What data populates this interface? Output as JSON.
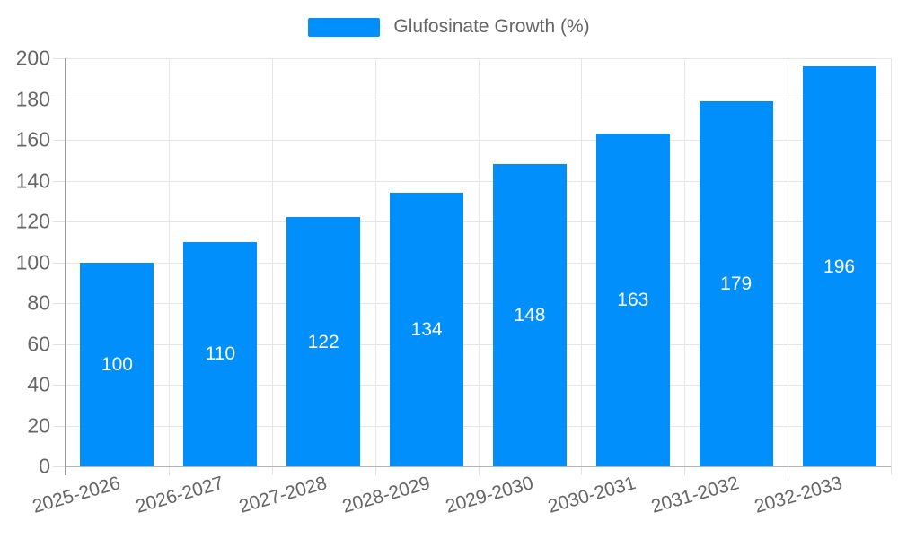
{
  "legend": {
    "label": "Glufosinate Growth (%)",
    "swatch_color": "#008FFB"
  },
  "colors": {
    "bar": "#008FFB",
    "grid": "#e6e6e6",
    "tick": "#e0e0e0",
    "axis_y_line": "#999999",
    "axis_x_line": "#b3b3b3",
    "label": "#666666",
    "value_label": "#ffffff",
    "background": "#ffffff"
  },
  "chart_data": {
    "type": "bar",
    "title": "",
    "xlabel": "",
    "ylabel": "",
    "categories": [
      "2025-2026",
      "2026-2027",
      "2027-2028",
      "2028-2029",
      "2029-2030",
      "2030-2031",
      "2031-2032",
      "2032-2033"
    ],
    "series": [
      {
        "name": "Glufosinate Growth (%)",
        "color": "#008FFB",
        "values": [
          100,
          110,
          122,
          134,
          148,
          163,
          179,
          196
        ]
      }
    ],
    "ylim": [
      0,
      200
    ],
    "ytick_step": 20,
    "ytick_labels": [
      "0",
      "20",
      "40",
      "60",
      "80",
      "100",
      "120",
      "140",
      "160",
      "180",
      "200"
    ],
    "grid": true,
    "legend_position": "top",
    "value_labels_position": "inside-center",
    "x_label_rotation_deg": -16
  }
}
